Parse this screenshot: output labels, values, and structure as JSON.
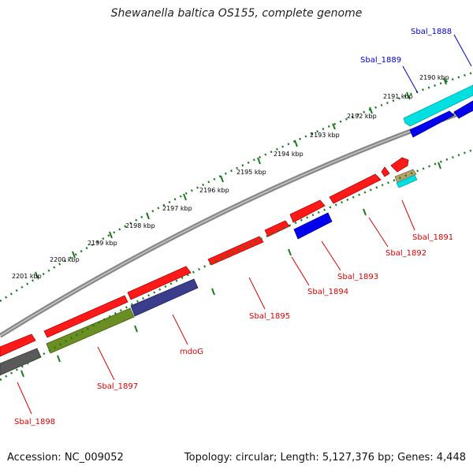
{
  "title": "Shewanella baltica OS155, complete genome",
  "footer": {
    "accession": "Accession: NC_009052",
    "topology": "Topology: circular; Length: 5,127,376 bp; Genes: 4,448"
  },
  "colors": {
    "forward_gene": "#ff0000",
    "blue_gene": "#0000ee",
    "cyan_gene": "#00e5e5",
    "olive_gene": "#6b8e23",
    "navy_gene": "#3c3c8c",
    "gray_gene": "#555555",
    "tick": "#1a7a1a",
    "backbone": "#808080",
    "label_red": "#dd0000",
    "label_blue": "#0000cc"
  },
  "kbp_labels": [
    "2190 kbp",
    "2191 kbp",
    "2192 kbp",
    "2193 kbp",
    "2194 kbp",
    "2195 kbp",
    "2196 kbp",
    "2197 kbp",
    "2198 kbp",
    "2199 kbp",
    "2200 kbp",
    "2201 kbp"
  ],
  "gene_labels": [
    {
      "id": "sbal_1888",
      "text": "Sbal_1888",
      "color": "blue"
    },
    {
      "id": "sbal_1889",
      "text": "Sbal_1889",
      "color": "blue"
    },
    {
      "id": "sbal_1891",
      "text": "Sbal_1891",
      "color": "red"
    },
    {
      "id": "sbal_1892",
      "text": "Sbal_1892",
      "color": "red"
    },
    {
      "id": "sbal_1893",
      "text": "Sbal_1893",
      "color": "red"
    },
    {
      "id": "sbal_1894",
      "text": "Sbal_1894",
      "color": "red"
    },
    {
      "id": "sbal_1895",
      "text": "Sbal_1895",
      "color": "red"
    },
    {
      "id": "mdog",
      "text": "mdoG",
      "color": "red"
    },
    {
      "id": "sbal_1897",
      "text": "Sbal_1897",
      "color": "red"
    },
    {
      "id": "sbal_1898",
      "text": "Sbal_1898",
      "color": "red"
    }
  ]
}
